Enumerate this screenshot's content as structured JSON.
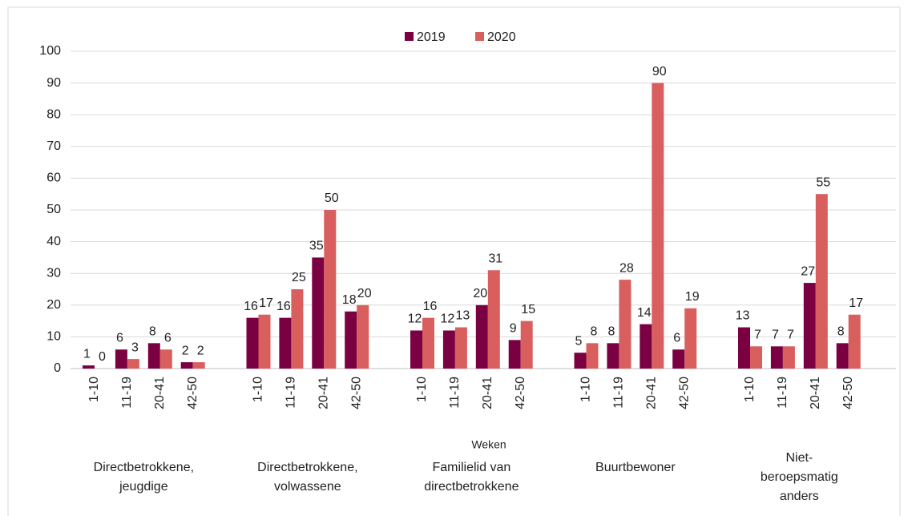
{
  "chart_data": {
    "type": "bar",
    "categories": [
      "1-10",
      "11-19",
      "20-41",
      "42-50",
      "1-10",
      "11-19",
      "20-41",
      "42-50",
      "1-10",
      "11-19",
      "20-41",
      "42-50",
      "1-10",
      "11-19",
      "20-41",
      "42-50",
      "1-10",
      "11-19",
      "20-41",
      "42-50"
    ],
    "groups": [
      "Directbetrokkene, jeugdige",
      "Directbetrokkene, volwassene",
      "Familielid van directbetrokkene",
      "Buurtbewoner",
      "Niet-beroepsmatig anders"
    ],
    "xlabel": "Weken",
    "series": [
      {
        "name": "2019",
        "color": "#7b0041",
        "values": [
          1,
          6,
          8,
          2,
          16,
          16,
          35,
          18,
          12,
          12,
          20,
          9,
          5,
          8,
          14,
          6,
          13,
          7,
          27,
          8
        ]
      },
      {
        "name": "2020",
        "color": "#d95f5f",
        "values": [
          0,
          3,
          6,
          2,
          17,
          25,
          50,
          20,
          16,
          13,
          31,
          15,
          8,
          28,
          90,
          19,
          7,
          7,
          55,
          17
        ]
      }
    ],
    "ylim": [
      0,
      100
    ],
    "yticks": [
      0,
      10,
      20,
      30,
      40,
      50,
      60,
      70,
      80,
      90,
      100
    ],
    "grid": true,
    "legend": "top"
  }
}
